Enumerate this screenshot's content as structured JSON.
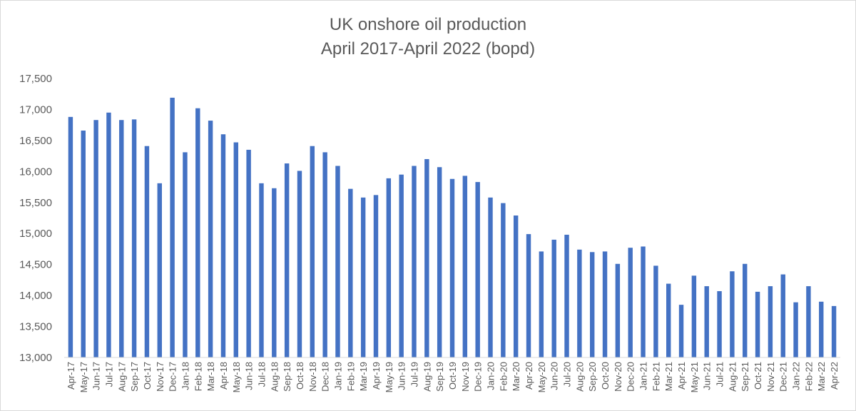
{
  "chart_data": {
    "type": "bar",
    "title_line1": "UK onshore oil production",
    "title_line2": "April 2017-April 2022 (bopd)",
    "xlabel": "",
    "ylabel": "",
    "ylim": [
      13000,
      17500
    ],
    "yticks": [
      13000,
      13500,
      14000,
      14500,
      15000,
      15500,
      16000,
      16500,
      17000,
      17500
    ],
    "ytick_labels": [
      "13,000",
      "13,500",
      "14,000",
      "14,500",
      "15,000",
      "15,500",
      "16,000",
      "16,500",
      "17,000",
      "17,500"
    ],
    "grid": false,
    "legend": "none",
    "bar_color": "#4472c4",
    "categories": [
      "Apr-17",
      "May-17",
      "Jun-17",
      "Jul-17",
      "Aug-17",
      "Sep-17",
      "Oct-17",
      "Nov-17",
      "Dec-17",
      "Jan-18",
      "Feb-18",
      "Mar-18",
      "Apr-18",
      "May-18",
      "Jun-18",
      "Jul-18",
      "Aug-18",
      "Sep-18",
      "Oct-18",
      "Nov-18",
      "Dec-18",
      "Jan-19",
      "Feb-19",
      "Mar-19",
      "Apr-19",
      "May-19",
      "Jun-19",
      "Jul-19",
      "Aug-19",
      "Sep-19",
      "Oct-19",
      "Nov-19",
      "Dec-19",
      "Jan-20",
      "Feb-20",
      "Mar-20",
      "Apr-20",
      "May-20",
      "Jun-20",
      "Jul-20",
      "Aug-20",
      "Sep-20",
      "Oct-20",
      "Nov-20",
      "Dec-20",
      "Jan-21",
      "Feb-21",
      "Mar-21",
      "Apr-21",
      "May-21",
      "Jun-21",
      "Jul-21",
      "Aug-21",
      "Sep-21",
      "Oct-21",
      "Nov-21",
      "Dec-21",
      "Jan-22",
      "Feb-22",
      "Mar-22",
      "Apr-22"
    ],
    "values": [
      16880,
      16660,
      16830,
      16950,
      16830,
      16840,
      16410,
      15810,
      17190,
      16310,
      17020,
      16820,
      16600,
      16470,
      16350,
      15810,
      15730,
      16130,
      16010,
      16410,
      16310,
      16090,
      15720,
      15580,
      15620,
      15890,
      15950,
      16090,
      16200,
      16070,
      15880,
      15930,
      15830,
      15580,
      15490,
      15290,
      14990,
      14710,
      14900,
      14980,
      14740,
      14700,
      14710,
      14510,
      14770,
      14790,
      14480,
      14190,
      13850,
      14320,
      14150,
      14070,
      14390,
      14510,
      14060,
      14150,
      14340,
      13890,
      14150,
      13900,
      13830
    ]
  }
}
